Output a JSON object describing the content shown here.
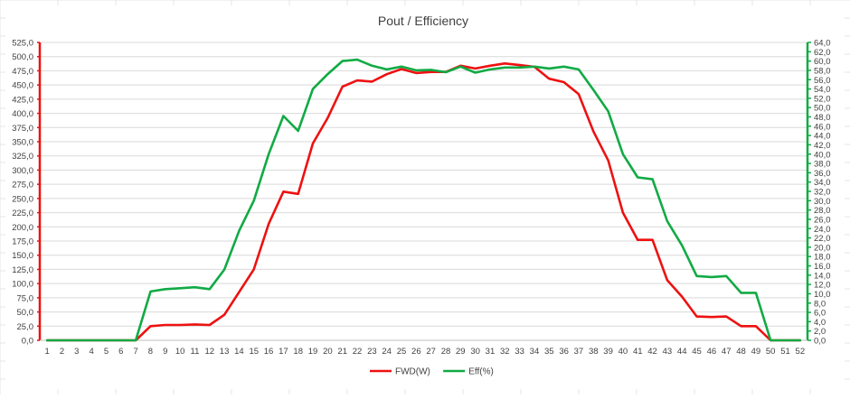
{
  "chart_data": {
    "type": "line",
    "title": "Pout / Efficiency",
    "x": [
      1,
      2,
      3,
      4,
      5,
      6,
      7,
      8,
      9,
      10,
      11,
      12,
      13,
      14,
      15,
      16,
      17,
      18,
      19,
      20,
      21,
      22,
      23,
      24,
      25,
      26,
      27,
      28,
      29,
      30,
      31,
      32,
      33,
      34,
      35,
      36,
      37,
      38,
      39,
      40,
      41,
      42,
      43,
      44,
      45,
      46,
      47,
      48,
      49,
      50,
      51,
      52
    ],
    "series": [
      {
        "name": "FWD(W)",
        "axis": "left",
        "color": "#ee1111",
        "values": [
          0,
          0,
          0,
          0,
          0,
          0,
          0,
          25,
          27,
          27,
          28,
          27,
          45,
          85,
          125,
          205,
          262,
          258,
          347,
          392,
          447,
          458,
          456,
          469,
          478,
          471,
          473,
          473,
          484,
          479,
          484,
          488,
          485,
          482,
          461,
          455,
          434,
          368,
          317,
          225,
          177,
          177,
          106,
          77,
          42,
          41,
          42,
          25,
          25,
          0,
          0,
          0
        ]
      },
      {
        "name": "Eff(%)",
        "axis": "right",
        "color": "#11aa44",
        "values": [
          0,
          0,
          0,
          0,
          0,
          0,
          0,
          10.5,
          11,
          11.2,
          11.4,
          11,
          15.2,
          23.5,
          30,
          40,
          48.2,
          45,
          54,
          57.2,
          60,
          60.3,
          59,
          58.2,
          58.8,
          58,
          58.1,
          57.6,
          58.8,
          57.5,
          58.2,
          58.6,
          58.6,
          58.8,
          58.4,
          58.8,
          58.2,
          53.8,
          49.2,
          40,
          35,
          34.6,
          25.6,
          20.4,
          13.8,
          13.6,
          13.8,
          10.2,
          10.2,
          0,
          0,
          0
        ]
      }
    ],
    "y_left": {
      "min": 0,
      "max": 525,
      "step": 25,
      "tick_labels": [
        "0,0",
        "25,0",
        "50,0",
        "75,0",
        "100,0",
        "125,0",
        "150,0",
        "175,0",
        "200,0",
        "225,0",
        "250,0",
        "275,0",
        "300,0",
        "325,0",
        "350,0",
        "375,0",
        "400,0",
        "425,0",
        "450,0",
        "475,0",
        "500,0",
        "525,0"
      ],
      "axis_color": "#ee1111"
    },
    "y_right": {
      "min": 0,
      "max": 64,
      "step": 2,
      "tick_labels": [
        "0,0",
        "2,0",
        "4,0",
        "6,0",
        "8,0",
        "10,0",
        "12,0",
        "14,0",
        "16,0",
        "18,0",
        "20,0",
        "22,0",
        "24,0",
        "26,0",
        "28,0",
        "30,0",
        "32,0",
        "34,0",
        "36,0",
        "38,0",
        "40,0",
        "42,0",
        "44,0",
        "46,0",
        "48,0",
        "50,0",
        "52,0",
        "54,0",
        "56,0",
        "58,0",
        "60,0",
        "62,0",
        "64,0"
      ],
      "axis_color": "#11aa44"
    },
    "grid": true,
    "legend_position": "bottom"
  }
}
